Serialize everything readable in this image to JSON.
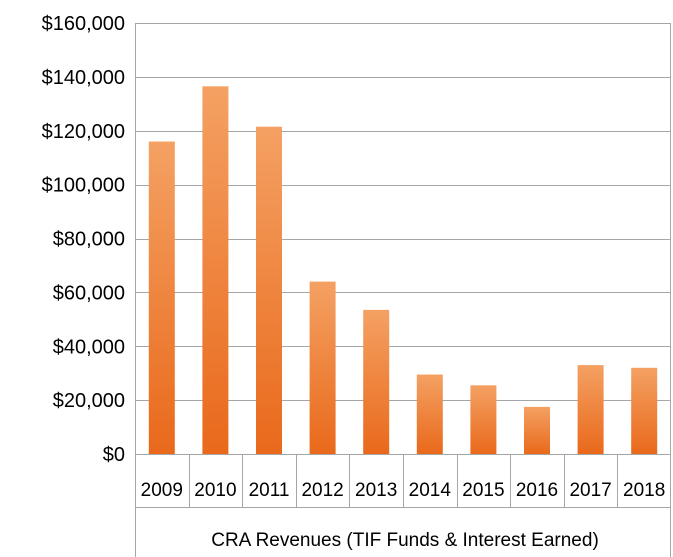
{
  "chart_data": {
    "type": "bar",
    "categories": [
      "2009",
      "2010",
      "2011",
      "2012",
      "2013",
      "2014",
      "2015",
      "2016",
      "2017",
      "2018"
    ],
    "values": [
      116000,
      136500,
      121500,
      64000,
      53500,
      29500,
      25500,
      17500,
      33000,
      32000
    ],
    "title": "",
    "xlabel": "CRA Revenues (TIF Funds & Interest Earned)",
    "ylabel": "",
    "ylim": [
      0,
      160000
    ],
    "yticks": [
      0,
      20000,
      40000,
      60000,
      80000,
      100000,
      120000,
      140000,
      160000
    ],
    "ytick_labels": [
      "$0",
      "$20,000",
      "$40,000",
      "$60,000",
      "$80,000",
      "$100,000",
      "$120,000",
      "$140,000",
      "$160,000"
    ],
    "grid": true,
    "bar_color_top": "#f4a163",
    "bar_color_bottom": "#e9691b",
    "gridline_color": "#a6a6a6",
    "axis_color": "#a6a6a6"
  }
}
